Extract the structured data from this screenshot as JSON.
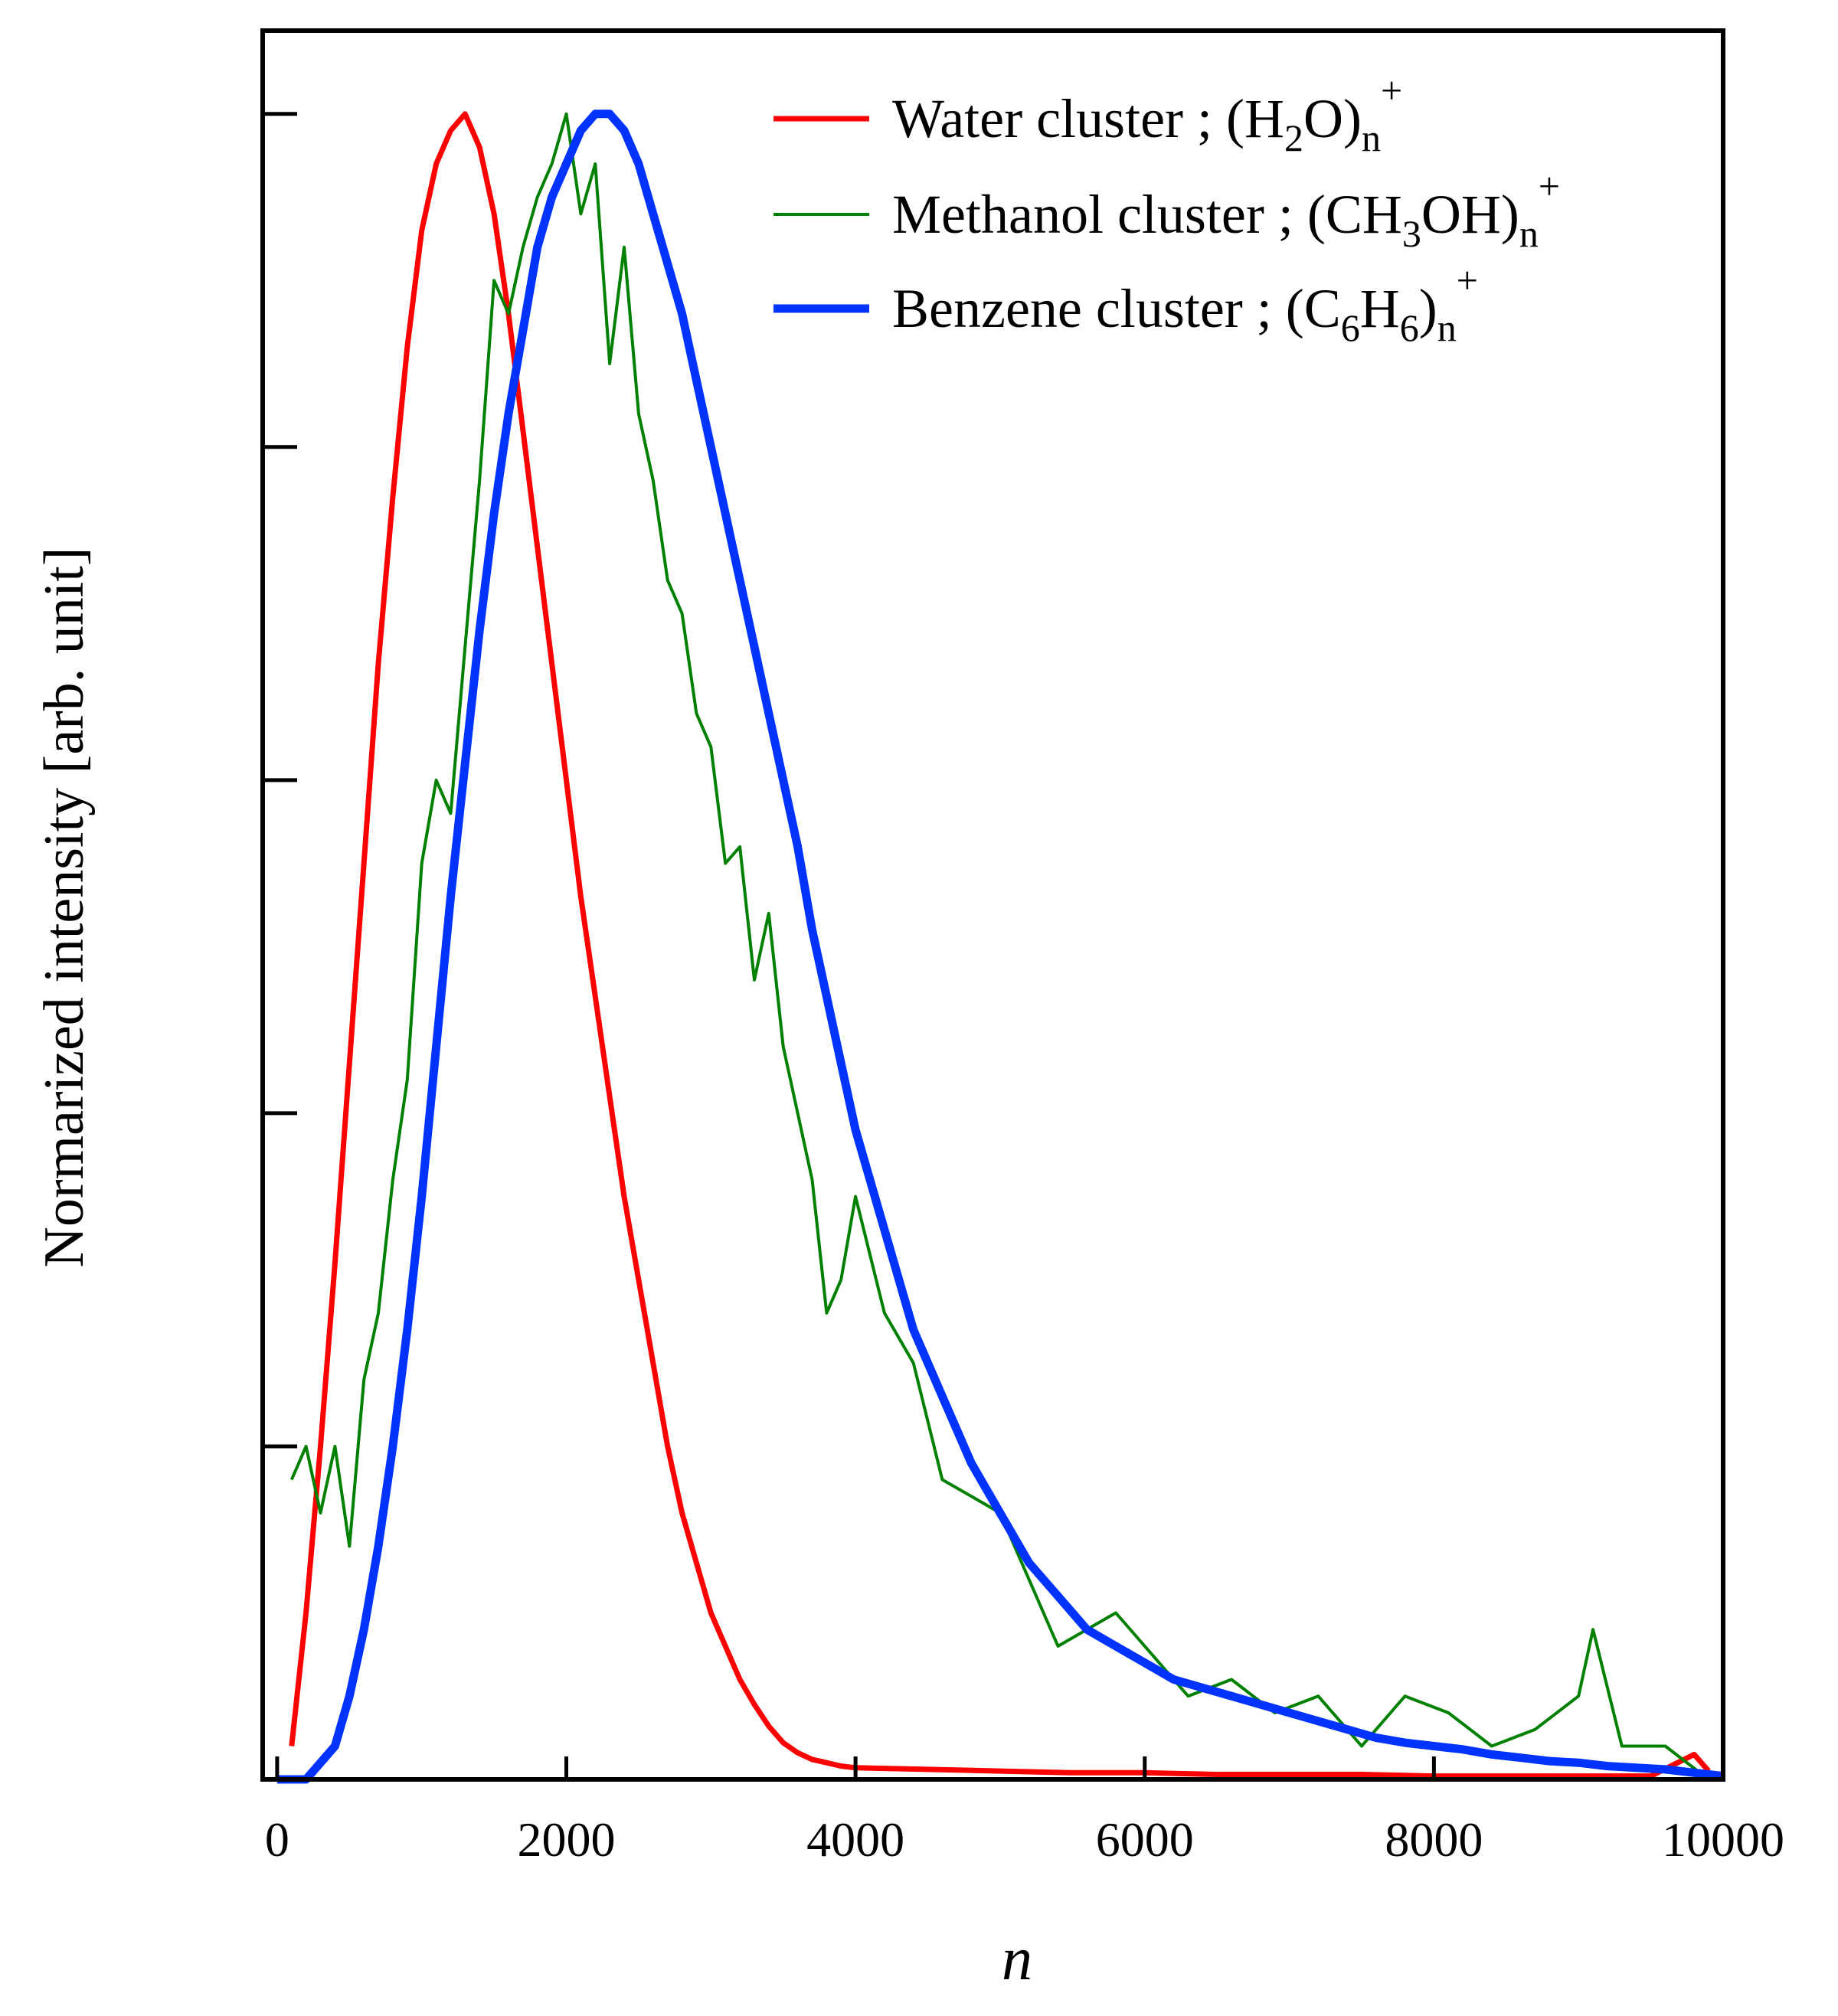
{
  "chart_data": {
    "type": "line",
    "title": "",
    "xlabel": "n",
    "ylabel": "Normarized intensity [arb. unit]",
    "xlim": [
      -100,
      10000
    ],
    "ylim": [
      0,
      1.05
    ],
    "x_ticks": [
      0,
      2000,
      4000,
      6000,
      8000,
      10000
    ],
    "x_tick_labels": [
      "0",
      "2000",
      "4000",
      "6000",
      "8000",
      "10000"
    ],
    "y_ticks": [
      0.2,
      0.4,
      0.6,
      0.8,
      1.0
    ],
    "y_tick_labels_visible": false,
    "grid": false,
    "legend_position": "top-right",
    "series": [
      {
        "name": "Water cluster",
        "legend": {
          "prefix": "Water cluster ; (H",
          "sub1": "2",
          "mid": "O)",
          "sub2": "n",
          "sup": "+"
        },
        "color": "#ff0000",
        "x": [
          100,
          200,
          300,
          400,
          500,
          600,
          700,
          800,
          900,
          1000,
          1100,
          1200,
          1300,
          1400,
          1500,
          1600,
          1700,
          1800,
          1900,
          2000,
          2100,
          2200,
          2300,
          2400,
          2500,
          2600,
          2700,
          2800,
          2900,
          3000,
          3100,
          3200,
          3300,
          3400,
          3500,
          3600,
          3700,
          3800,
          3900,
          4000,
          4500,
          5000,
          5500,
          6000,
          6500,
          7000,
          7500,
          8000,
          8500,
          9000,
          9500,
          9800,
          9900
        ],
        "y": [
          0.02,
          0.1,
          0.2,
          0.31,
          0.43,
          0.55,
          0.67,
          0.77,
          0.86,
          0.93,
          0.97,
          0.99,
          1.0,
          0.98,
          0.94,
          0.88,
          0.81,
          0.74,
          0.67,
          0.6,
          0.53,
          0.47,
          0.41,
          0.35,
          0.3,
          0.25,
          0.2,
          0.16,
          0.13,
          0.1,
          0.08,
          0.06,
          0.045,
          0.032,
          0.022,
          0.016,
          0.012,
          0.01,
          0.008,
          0.007,
          0.006,
          0.005,
          0.004,
          0.004,
          0.003,
          0.003,
          0.003,
          0.002,
          0.002,
          0.002,
          0.002,
          0.015,
          0.005
        ]
      },
      {
        "name": "Methanol cluster",
        "legend": {
          "prefix": "Methanol cluster ; (CH",
          "sub1": "3",
          "mid": "OH)",
          "sub2": "n",
          "sup": "+"
        },
        "color": "#008000",
        "x": [
          100,
          200,
          300,
          400,
          500,
          600,
          700,
          800,
          900,
          1000,
          1100,
          1200,
          1300,
          1400,
          1500,
          1600,
          1700,
          1800,
          1900,
          2000,
          2100,
          2200,
          2300,
          2400,
          2500,
          2600,
          2700,
          2800,
          2900,
          3000,
          3100,
          3200,
          3300,
          3400,
          3500,
          3600,
          3700,
          3800,
          3900,
          4000,
          4200,
          4400,
          4600,
          4800,
          5000,
          5200,
          5400,
          5600,
          5800,
          6000,
          6300,
          6600,
          6900,
          7200,
          7500,
          7800,
          8100,
          8400,
          8700,
          9000,
          9100,
          9300,
          9600,
          9900
        ],
        "y": [
          0.18,
          0.2,
          0.16,
          0.2,
          0.14,
          0.24,
          0.28,
          0.36,
          0.42,
          0.55,
          0.6,
          0.58,
          0.68,
          0.78,
          0.9,
          0.88,
          0.92,
          0.95,
          0.97,
          1.0,
          0.94,
          0.97,
          0.85,
          0.92,
          0.82,
          0.78,
          0.72,
          0.7,
          0.64,
          0.62,
          0.55,
          0.56,
          0.48,
          0.52,
          0.44,
          0.4,
          0.36,
          0.28,
          0.3,
          0.35,
          0.28,
          0.25,
          0.18,
          0.17,
          0.16,
          0.12,
          0.08,
          0.09,
          0.1,
          0.08,
          0.05,
          0.06,
          0.04,
          0.05,
          0.02,
          0.05,
          0.04,
          0.02,
          0.03,
          0.05,
          0.09,
          0.02,
          0.02,
          0.0
        ]
      },
      {
        "name": "Benzene cluster",
        "legend": {
          "prefix": "Benzene cluster ; (C",
          "sub1": "6",
          "mid": "H",
          "sub1b": "6",
          "end": ")",
          "sub2": "n",
          "sup": "+"
        },
        "color": "#0033ff",
        "x": [
          0,
          200,
          400,
          500,
          600,
          700,
          800,
          900,
          1000,
          1100,
          1200,
          1300,
          1400,
          1500,
          1600,
          1700,
          1800,
          1900,
          2000,
          2100,
          2200,
          2300,
          2400,
          2500,
          2600,
          2700,
          2800,
          2900,
          3000,
          3100,
          3200,
          3300,
          3400,
          3500,
          3600,
          3700,
          3800,
          3900,
          4000,
          4200,
          4400,
          4600,
          4800,
          5000,
          5200,
          5400,
          5600,
          5800,
          6000,
          6200,
          6400,
          6600,
          6800,
          7000,
          7200,
          7400,
          7600,
          7800,
          8000,
          8200,
          8400,
          8600,
          8800,
          9000,
          9200,
          9400,
          9600,
          9800,
          10000
        ],
        "y": [
          0.0,
          0.0,
          0.02,
          0.05,
          0.09,
          0.14,
          0.2,
          0.27,
          0.35,
          0.44,
          0.53,
          0.61,
          0.69,
          0.76,
          0.82,
          0.87,
          0.92,
          0.95,
          0.97,
          0.99,
          1.0,
          1.0,
          0.99,
          0.97,
          0.94,
          0.91,
          0.88,
          0.84,
          0.8,
          0.76,
          0.72,
          0.68,
          0.64,
          0.6,
          0.56,
          0.51,
          0.47,
          0.43,
          0.39,
          0.33,
          0.27,
          0.23,
          0.19,
          0.16,
          0.13,
          0.11,
          0.09,
          0.08,
          0.07,
          0.06,
          0.055,
          0.05,
          0.045,
          0.04,
          0.035,
          0.03,
          0.025,
          0.022,
          0.02,
          0.018,
          0.015,
          0.013,
          0.011,
          0.01,
          0.008,
          0.007,
          0.006,
          0.004,
          0.002
        ]
      }
    ]
  }
}
